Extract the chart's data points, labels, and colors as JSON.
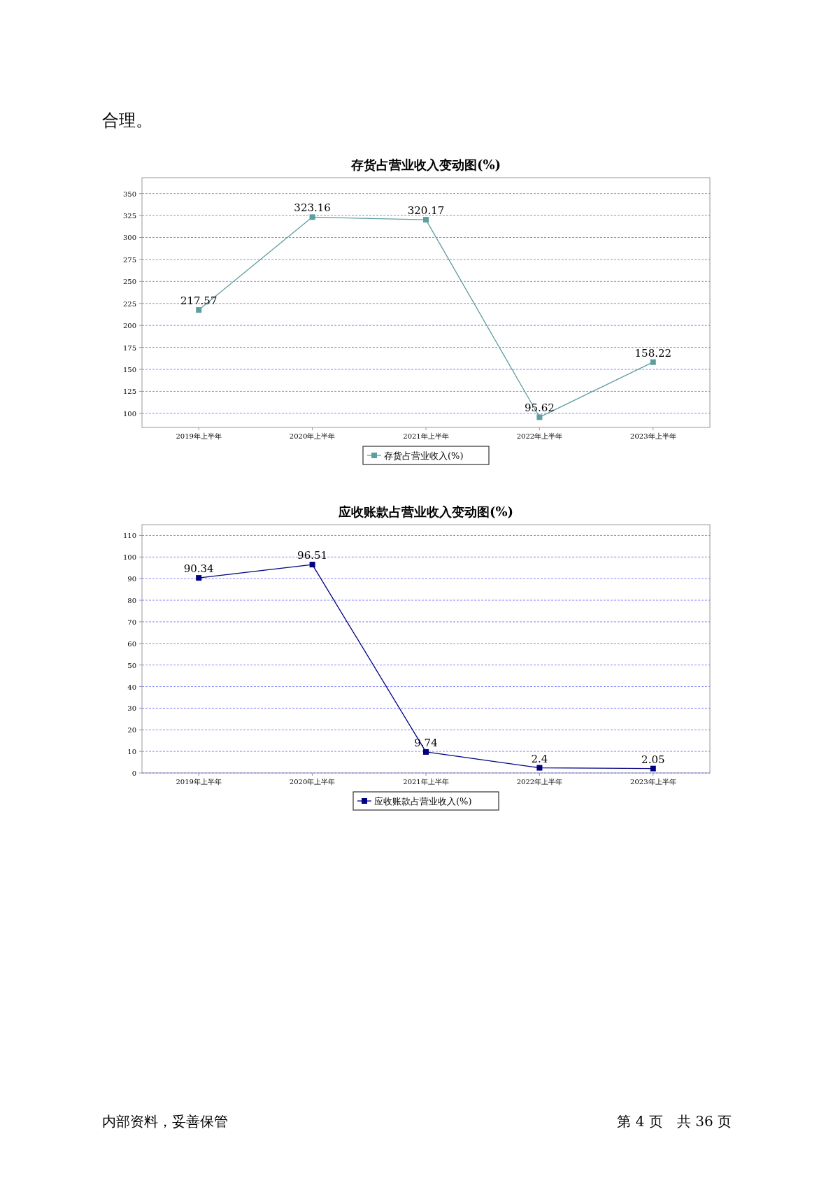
{
  "chart_data": [
    {
      "type": "line",
      "title": "存货占营业收入变动图(%)",
      "annotations": [
        "合理。"
      ],
      "categories": [
        "2019年上半年",
        "2020年上半年",
        "2021年上半年",
        "2022年上半年",
        "2023年上半年"
      ],
      "series": [
        {
          "name": "存货占营业收入(%)",
          "color": "#5f9ea0",
          "values": [
            217.57,
            323.16,
            320.17,
            95.62,
            158.22
          ]
        }
      ],
      "ylim": [
        84,
        368
      ],
      "yticks": [
        100,
        125,
        150,
        175,
        200,
        225,
        250,
        275,
        300,
        325,
        350
      ],
      "grid": "y",
      "legend": "bottom",
      "marker": "square",
      "line_style": "solid",
      "data_labels": true
    },
    {
      "type": "line",
      "title": "应收账款占营业收入变动图(%)",
      "annotations": [
        "内部资料，妥善保管",
        "第 4 页　共 36 页"
      ],
      "categories": [
        "2019年上半年",
        "2020年上半年",
        "2021年上半年",
        "2022年上半年",
        "2023年上半年"
      ],
      "series": [
        {
          "name": "应收账款占营业收入(%)",
          "color": "#000080",
          "values": [
            90.34,
            96.51,
            9.74,
            2.4,
            2.05
          ]
        }
      ],
      "ylim": [
        0,
        115
      ],
      "yticks": [
        0,
        10,
        20,
        30,
        40,
        50,
        60,
        70,
        80,
        90,
        100,
        110
      ],
      "grid": "y",
      "legend": "bottom",
      "marker": "square",
      "line_style": "solid",
      "data_labels": true
    }
  ]
}
